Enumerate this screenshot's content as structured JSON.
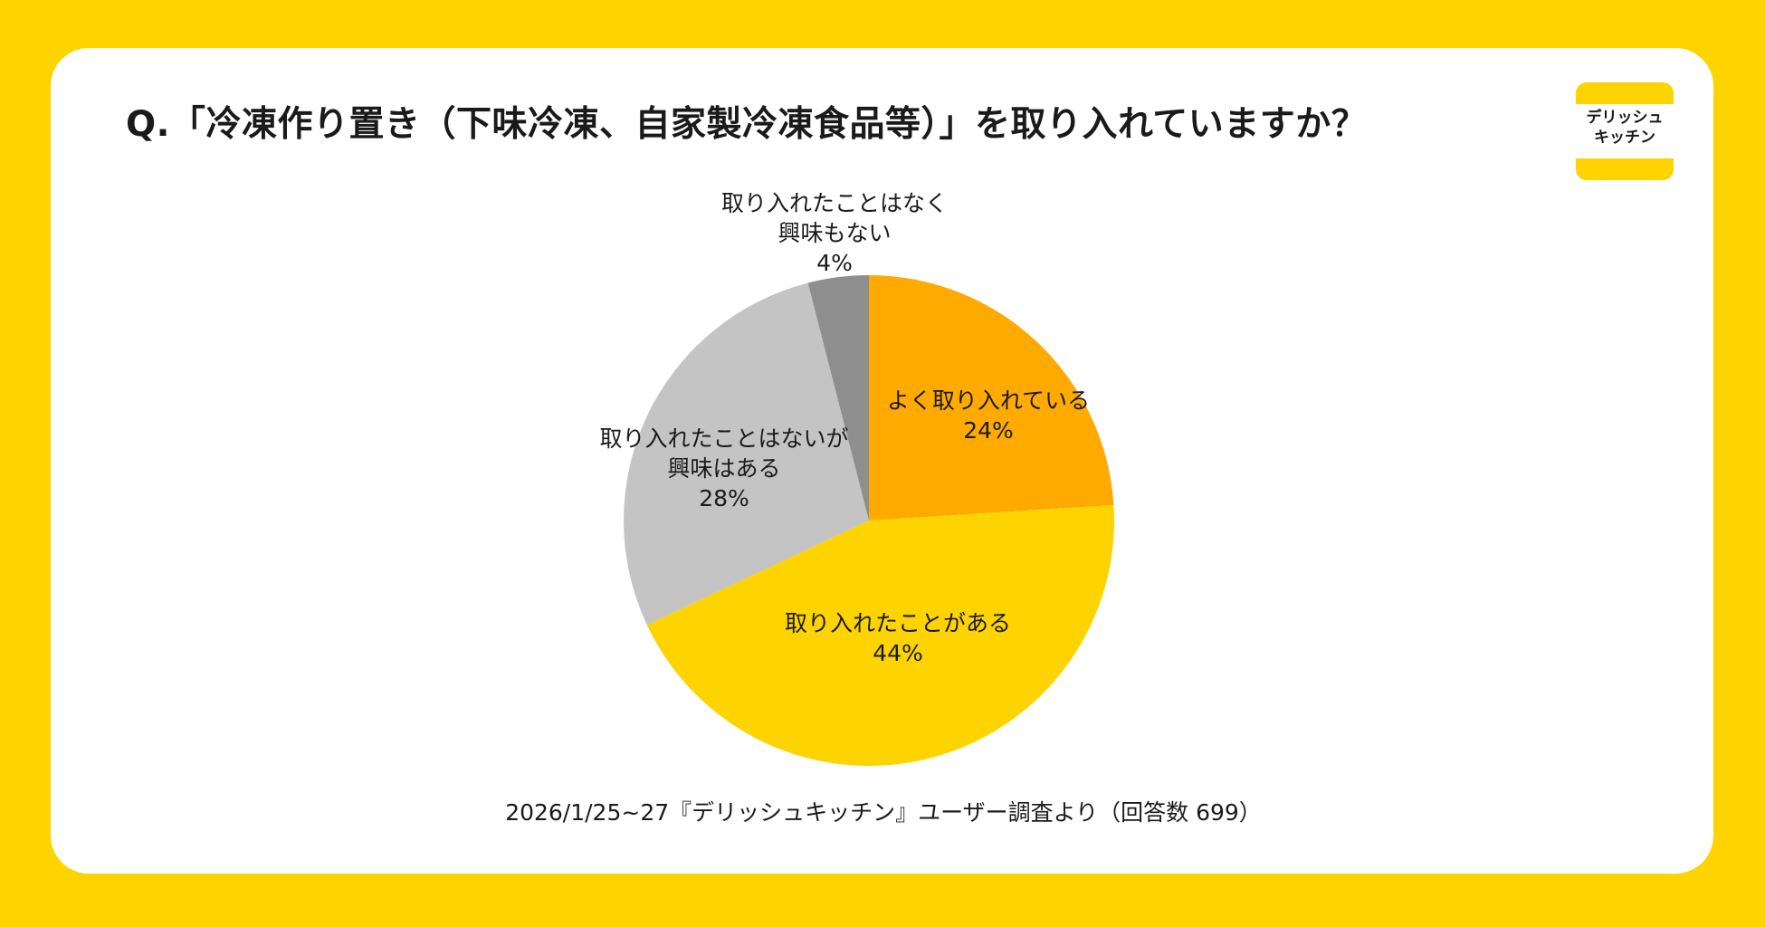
{
  "title": "Q.「冷凍作り置き（下味冷凍、自家製冷凍食品等）」を取り入れていますか？",
  "logo": {
    "line1": "デリッシュ",
    "line2": "キッチン"
  },
  "footer": "2026/1/25~27『デリッシュキッチン』ユーザー調査より（回答数 699）",
  "background_color": "#FDD300",
  "chart_data": {
    "type": "pie",
    "start": "top, clockwise",
    "slices": [
      {
        "label": "よく取り入れている",
        "value": 24,
        "value_label": "24%",
        "color": "#FFAA00"
      },
      {
        "label": "取り入れたことがある",
        "value": 44,
        "value_label": "44%",
        "color": "#FDD300"
      },
      {
        "label": "取り入れたことはないが興味はある",
        "label_lines": [
          "取り入れたことはないが",
          "興味はある"
        ],
        "value": 28,
        "value_label": "28%",
        "color": "#C4C4C4"
      },
      {
        "label": "取り入れたことはなく興味もない",
        "label_lines": [
          "取り入れたことはなく",
          "興味もない"
        ],
        "value": 4,
        "value_label": "4%",
        "color": "#8E8E8E"
      }
    ]
  }
}
